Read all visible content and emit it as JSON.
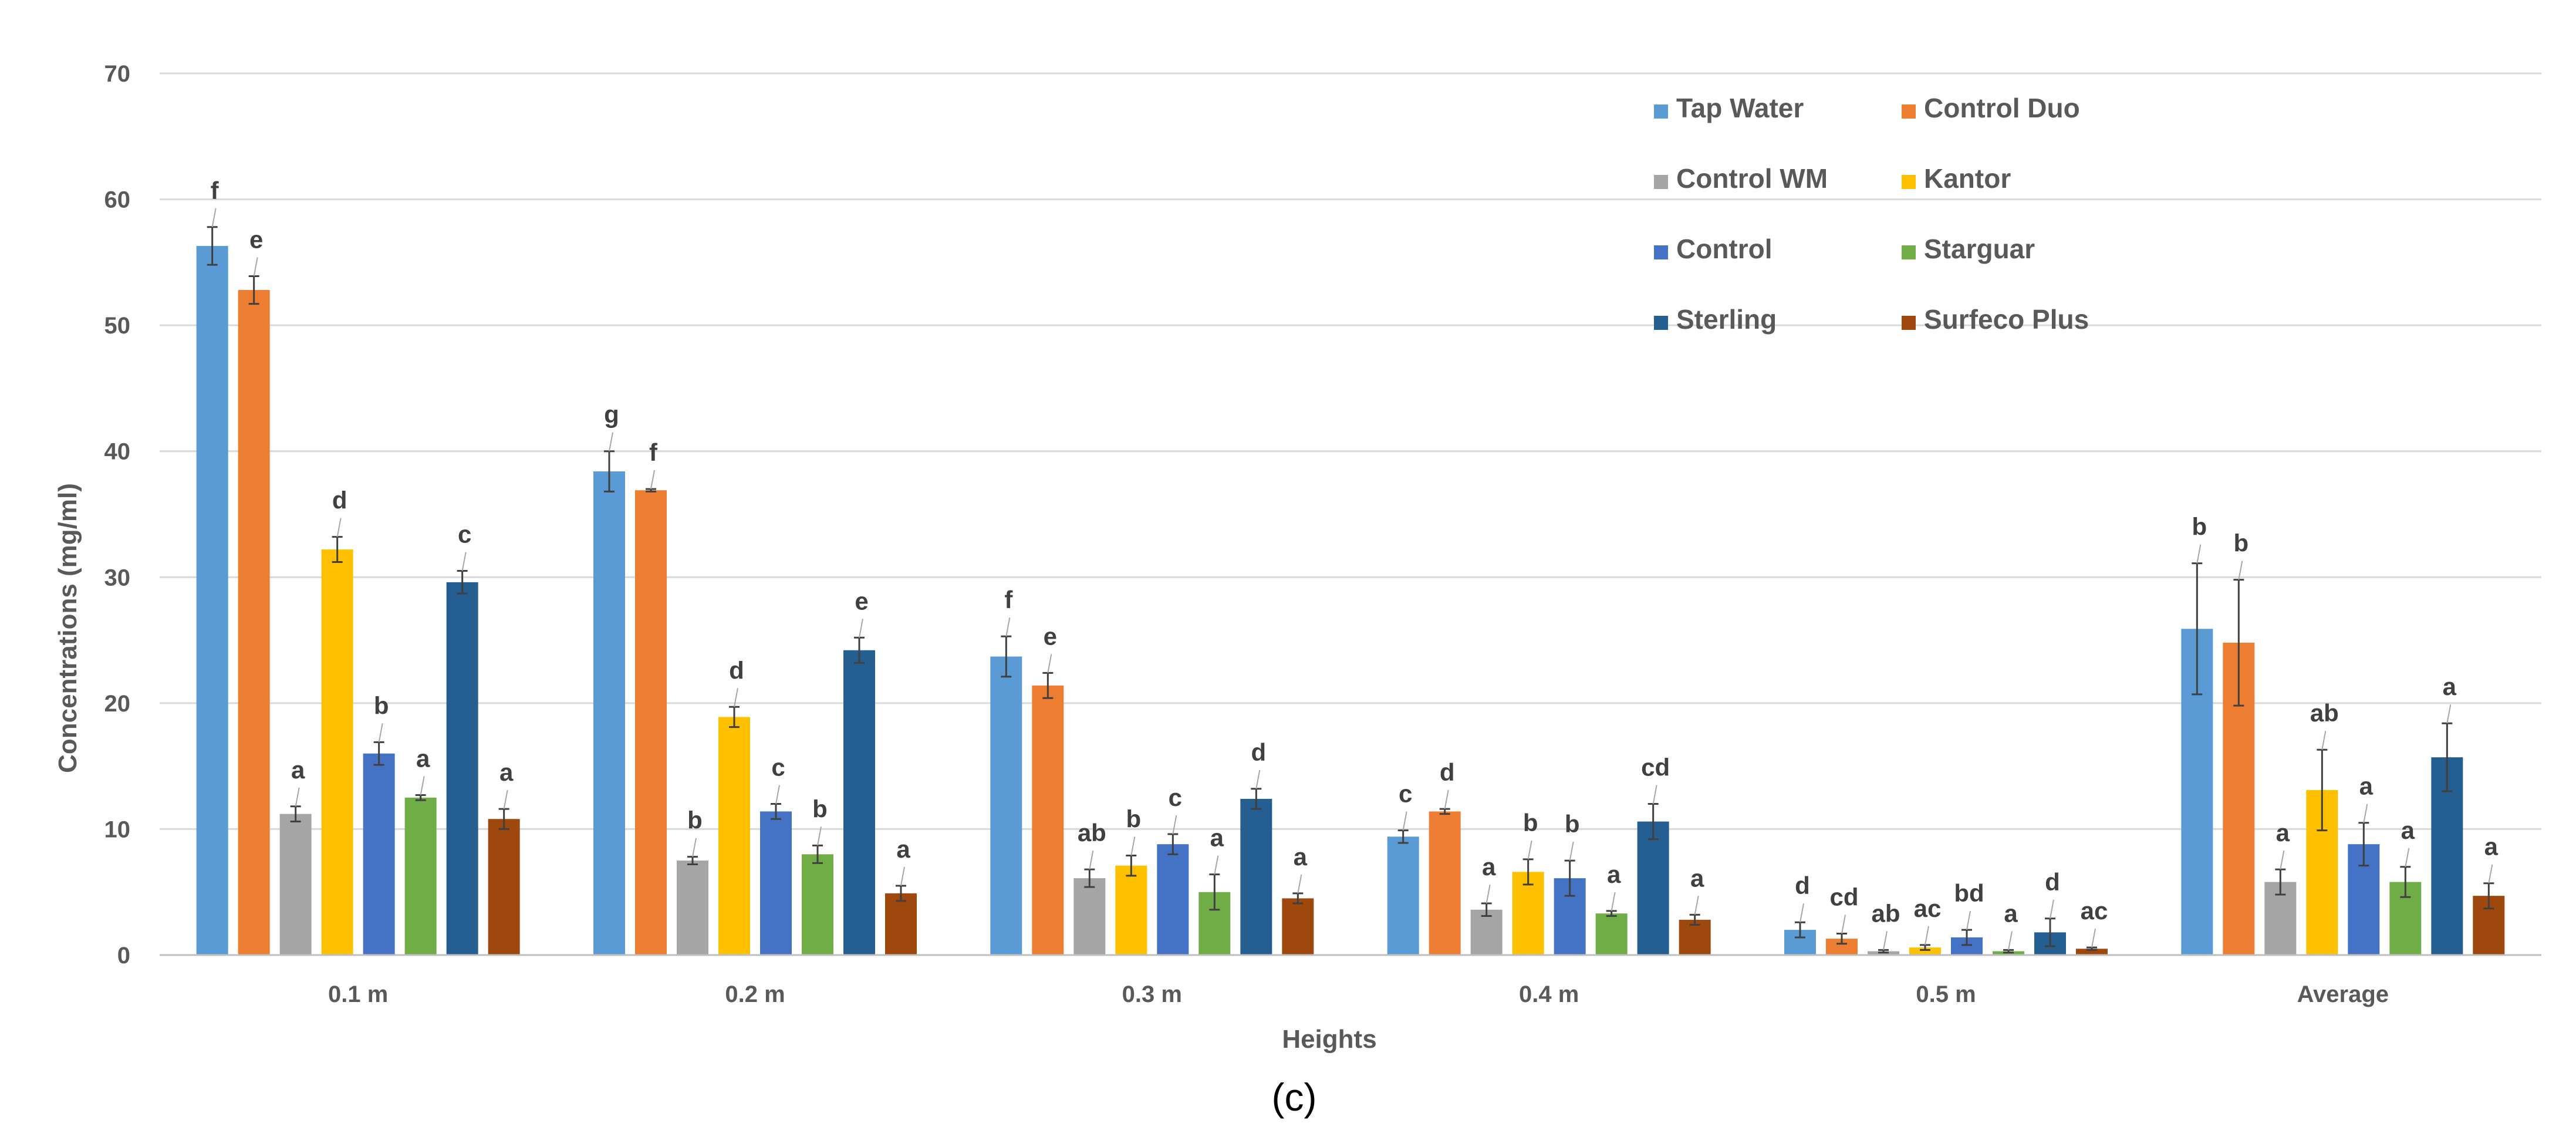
{
  "chart_data": {
    "type": "bar",
    "title": "",
    "panel_label": "(c)",
    "xlabel": "Heights",
    "ylabel": "Concentrations  (mg/ml)",
    "ylim": [
      0,
      70
    ],
    "yticks": [
      0,
      10,
      20,
      30,
      40,
      50,
      60,
      70
    ],
    "grid": true,
    "legend_position": "top-right",
    "categories": [
      "0.1 m",
      "0.2 m",
      "0.3 m",
      "0.4 m",
      "0.5 m",
      "Average"
    ],
    "series": [
      {
        "name": "Tap Water",
        "color": "#5B9BD5",
        "values": [
          56.3,
          38.4,
          23.7,
          9.4,
          2.0,
          25.9
        ],
        "errors": [
          1.5,
          1.6,
          1.6,
          0.5,
          0.6,
          5.2
        ],
        "labels": [
          "f",
          "g",
          "f",
          "c",
          "d",
          "b"
        ]
      },
      {
        "name": "Control Duo",
        "color": "#ED7D31",
        "values": [
          52.8,
          36.9,
          21.4,
          11.4,
          1.3,
          24.8
        ],
        "errors": [
          1.1,
          0.1,
          1.0,
          0.2,
          0.4,
          5.0
        ],
        "labels": [
          "e",
          "f",
          "e",
          "d",
          "cd",
          "b"
        ]
      },
      {
        "name": "Control WM",
        "color": "#A5A5A5",
        "values": [
          11.2,
          7.5,
          6.1,
          3.6,
          0.3,
          5.8
        ],
        "errors": [
          0.6,
          0.3,
          0.7,
          0.5,
          0.1,
          1.0
        ],
        "labels": [
          "a",
          "b",
          "ab",
          "a",
          "ab",
          "a"
        ]
      },
      {
        "name": "Kantor",
        "color": "#FFC000",
        "values": [
          32.2,
          18.9,
          7.1,
          6.6,
          0.6,
          13.1
        ],
        "errors": [
          1.0,
          0.8,
          0.8,
          1.0,
          0.2,
          3.2
        ],
        "labels": [
          "d",
          "d",
          "b",
          "b",
          "ac",
          "ab"
        ]
      },
      {
        "name": "Control",
        "color": "#4472C4",
        "values": [
          16.0,
          11.4,
          8.8,
          6.1,
          1.4,
          8.8
        ],
        "errors": [
          0.9,
          0.6,
          0.8,
          1.4,
          0.6,
          1.7
        ],
        "labels": [
          "b",
          "c",
          "c",
          "b",
          "bd",
          "a"
        ]
      },
      {
        "name": "Starguar",
        "color": "#70AD47",
        "values": [
          12.5,
          8.0,
          5.0,
          3.3,
          0.3,
          5.8
        ],
        "errors": [
          0.2,
          0.7,
          1.4,
          0.2,
          0.1,
          1.2
        ],
        "labels": [
          "a",
          "b",
          "a",
          "a",
          "a",
          "a"
        ]
      },
      {
        "name": "Sterling",
        "color": "#255E91",
        "values": [
          29.6,
          24.2,
          12.4,
          10.6,
          1.8,
          15.7
        ],
        "errors": [
          0.9,
          1.0,
          0.8,
          1.4,
          1.1,
          2.7
        ],
        "labels": [
          "c",
          "e",
          "d",
          "cd",
          "d",
          "a"
        ]
      },
      {
        "name": "Surfeco Plus",
        "color": "#9E480E",
        "values": [
          10.8,
          4.9,
          4.5,
          2.8,
          0.5,
          4.7
        ],
        "errors": [
          0.8,
          0.6,
          0.4,
          0.4,
          0.1,
          1.0
        ],
        "labels": [
          "a",
          "a",
          "a",
          "a",
          "ac",
          "a"
        ]
      }
    ]
  }
}
